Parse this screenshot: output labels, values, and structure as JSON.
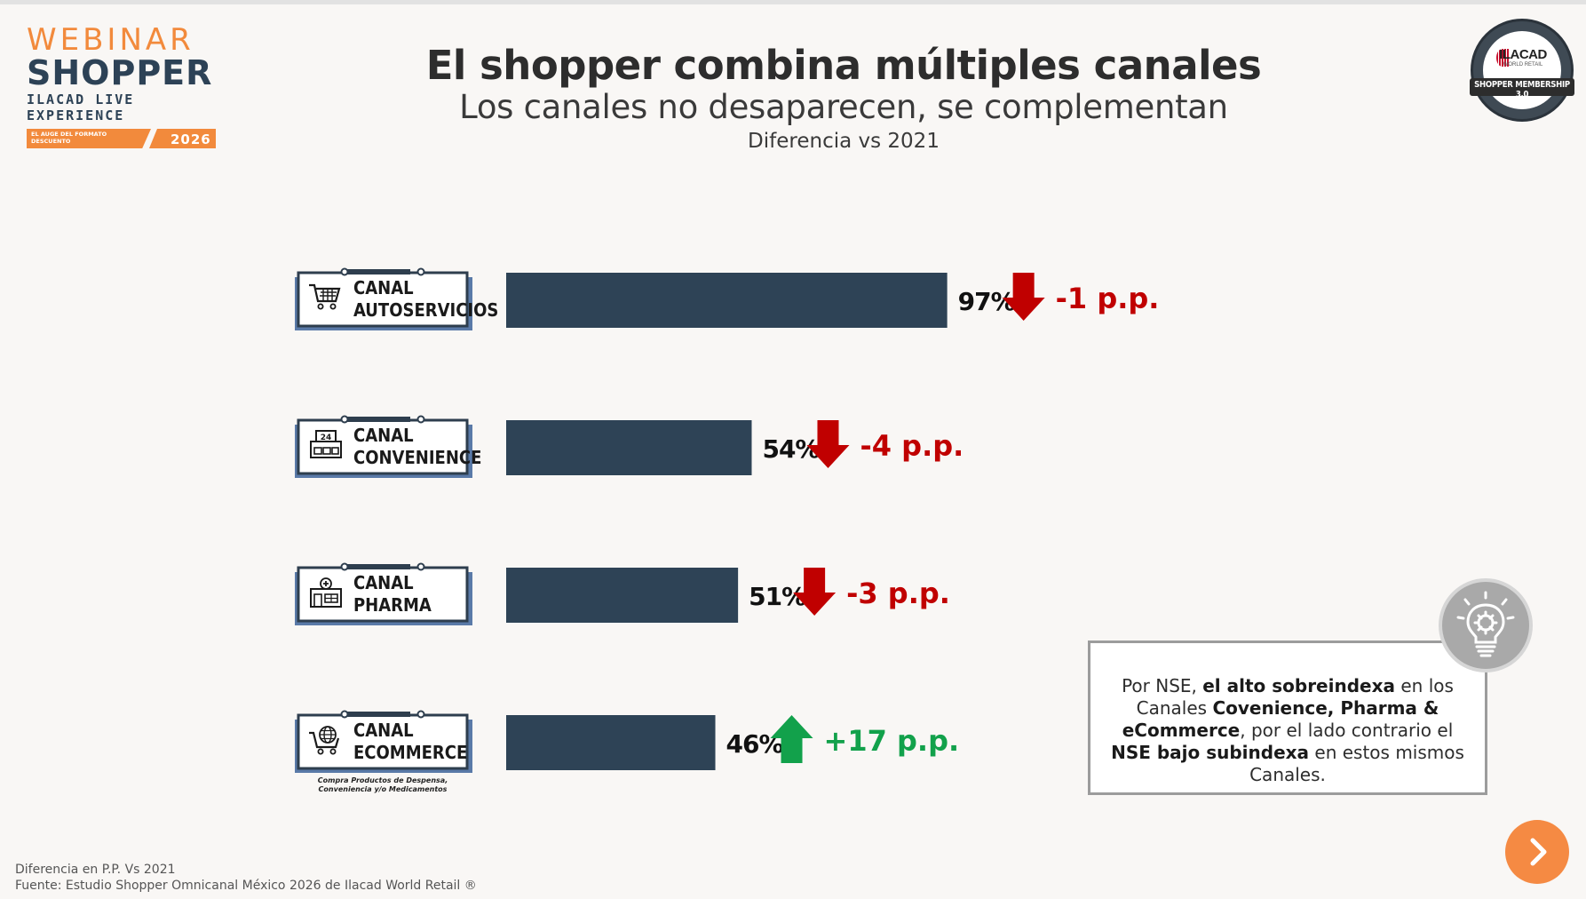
{
  "logo": {
    "line1": "WEBINAR",
    "line2": "SHOPPER",
    "line3": "ILACAD LIVE EXPERIENCE",
    "band_text": "EL AUGE DEL FORMATO DESCUENTO",
    "year": "2026"
  },
  "badge": {
    "brand": "ILACAD",
    "sub": "WORLD RETAIL",
    "ribbon": "SHOPPER MEMBERSHIP 3.0"
  },
  "title": "El shopper combina múltiples canales",
  "subtitle": "Los canales no desaparecen, se complementan",
  "subsubtitle": "Diferencia vs 2021",
  "chart_data": {
    "type": "bar",
    "orientation": "horizontal",
    "categories": [
      "CANAL AUTOSERVICIOS",
      "CANAL CONVENIENCE",
      "CANAL PHARMA",
      "CANAL ECOMMERCE"
    ],
    "category_lines": [
      [
        "CANAL",
        "AUTOSERVICIOS"
      ],
      [
        "CANAL",
        "CONVENIENCE"
      ],
      [
        "CANAL",
        "PHARMA"
      ],
      [
        "CANAL",
        "ECOMMERCE"
      ]
    ],
    "icons": [
      "shopping-cart-icon",
      "convenience-store-24-icon",
      "pharmacy-icon",
      "ecommerce-cart-globe-icon"
    ],
    "values": [
      97,
      54,
      51,
      46
    ],
    "value_labels": [
      "97%",
      "54%",
      "51%",
      "46%"
    ],
    "changes": [
      -1,
      -4,
      -3,
      17
    ],
    "change_labels": [
      "-1 p.p.",
      "-4 p.p.",
      "-3 p.p.",
      "+17 p.p."
    ],
    "xlim": [
      0,
      100
    ],
    "bar_color": "#2e4356",
    "down_color": "#c00000",
    "up_color": "#12a14b",
    "grid": false,
    "note": [
      "Compra Productos de Despensa,",
      "Conveniencia y/o Medicamentos"
    ]
  },
  "callout": {
    "t1": "Por NSE, ",
    "b1": "el alto sobreindexa",
    "t2": " en los Canales ",
    "b2": "Covenience, Pharma & eCommerce",
    "t3": ", por el lado contrario el ",
    "b3": "NSE bajo subindexa",
    "t4": " en estos mismos Canales."
  },
  "footer": {
    "line1": "Diferencia en P.P. Vs 2021",
    "line2": "Fuente: Estudio Shopper Omnicanal México 2026 de Ilacad World Retail ®"
  },
  "navigation": {
    "next_icon": "chevron-right-icon"
  }
}
